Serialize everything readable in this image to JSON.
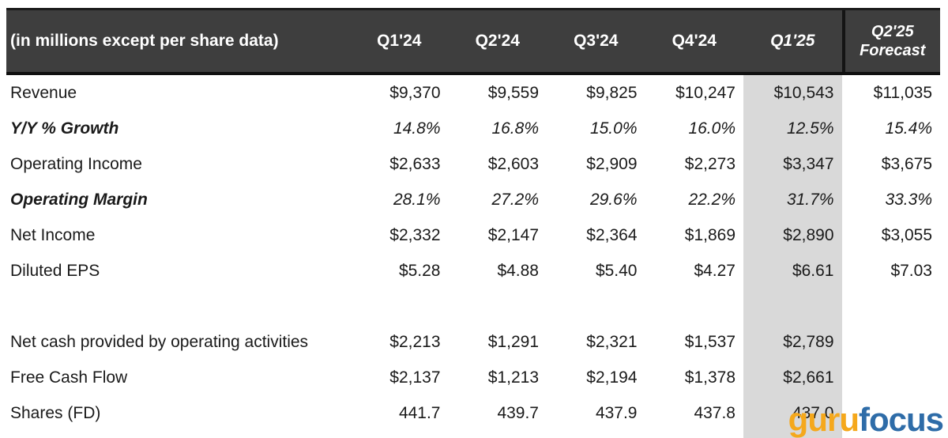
{
  "table": {
    "header": {
      "row_label": "(in millions except per share data)",
      "columns": [
        {
          "label": "Q1'24",
          "italic": false
        },
        {
          "label": "Q2'24",
          "italic": false
        },
        {
          "label": "Q3'24",
          "italic": false
        },
        {
          "label": "Q4'24",
          "italic": false
        },
        {
          "label": "Q1'25",
          "italic": true
        },
        {
          "label": "Q2'25\nForecast",
          "italic": true
        }
      ]
    },
    "highlighted_column": "Q1'25",
    "rows": [
      {
        "label": "Revenue",
        "italic": false,
        "values": [
          "$9,370",
          "$9,559",
          "$9,825",
          "$10,247",
          "$10,543",
          "$11,035"
        ]
      },
      {
        "label": "Y/Y % Growth",
        "italic": true,
        "values": [
          "14.8%",
          "16.8%",
          "15.0%",
          "16.0%",
          "12.5%",
          "15.4%"
        ]
      },
      {
        "label": "Operating Income",
        "italic": false,
        "values": [
          "$2,633",
          "$2,603",
          "$2,909",
          "$2,273",
          "$3,347",
          "$3,675"
        ]
      },
      {
        "label": "Operating Margin",
        "italic": true,
        "values": [
          "28.1%",
          "27.2%",
          "29.6%",
          "22.2%",
          "31.7%",
          "33.3%"
        ]
      },
      {
        "label": "Net Income",
        "italic": false,
        "values": [
          "$2,332",
          "$2,147",
          "$2,364",
          "$1,869",
          "$2,890",
          "$3,055"
        ]
      },
      {
        "label": "Diluted EPS",
        "italic": false,
        "values": [
          "$5.28",
          "$4.88",
          "$5.40",
          "$4.27",
          "$6.61",
          "$7.03"
        ]
      },
      {
        "label": "",
        "italic": false,
        "values": [
          "",
          "",
          "",
          "",
          "",
          ""
        ]
      },
      {
        "label": "Net cash provided by operating activities",
        "italic": false,
        "values": [
          "$2,213",
          "$1,291",
          "$2,321",
          "$1,537",
          "$2,789",
          ""
        ]
      },
      {
        "label": "Free Cash Flow",
        "italic": false,
        "values": [
          "$2,137",
          "$1,213",
          "$2,194",
          "$1,378",
          "$2,661",
          ""
        ]
      },
      {
        "label": "Shares (FD)",
        "italic": false,
        "values": [
          "441.7",
          "439.7",
          "437.9",
          "437.8",
          "437.0",
          ""
        ]
      }
    ],
    "colors": {
      "header_background": "#3e3e3e",
      "header_text": "#ffffff",
      "body_text": "#1a1a1a",
      "highlight_column_background": "#d9d9d9"
    }
  },
  "logo": {
    "part1": "guru",
    "part2": "focus",
    "part1_color": "#f5a81c",
    "part2_color": "#2e6ca8"
  }
}
